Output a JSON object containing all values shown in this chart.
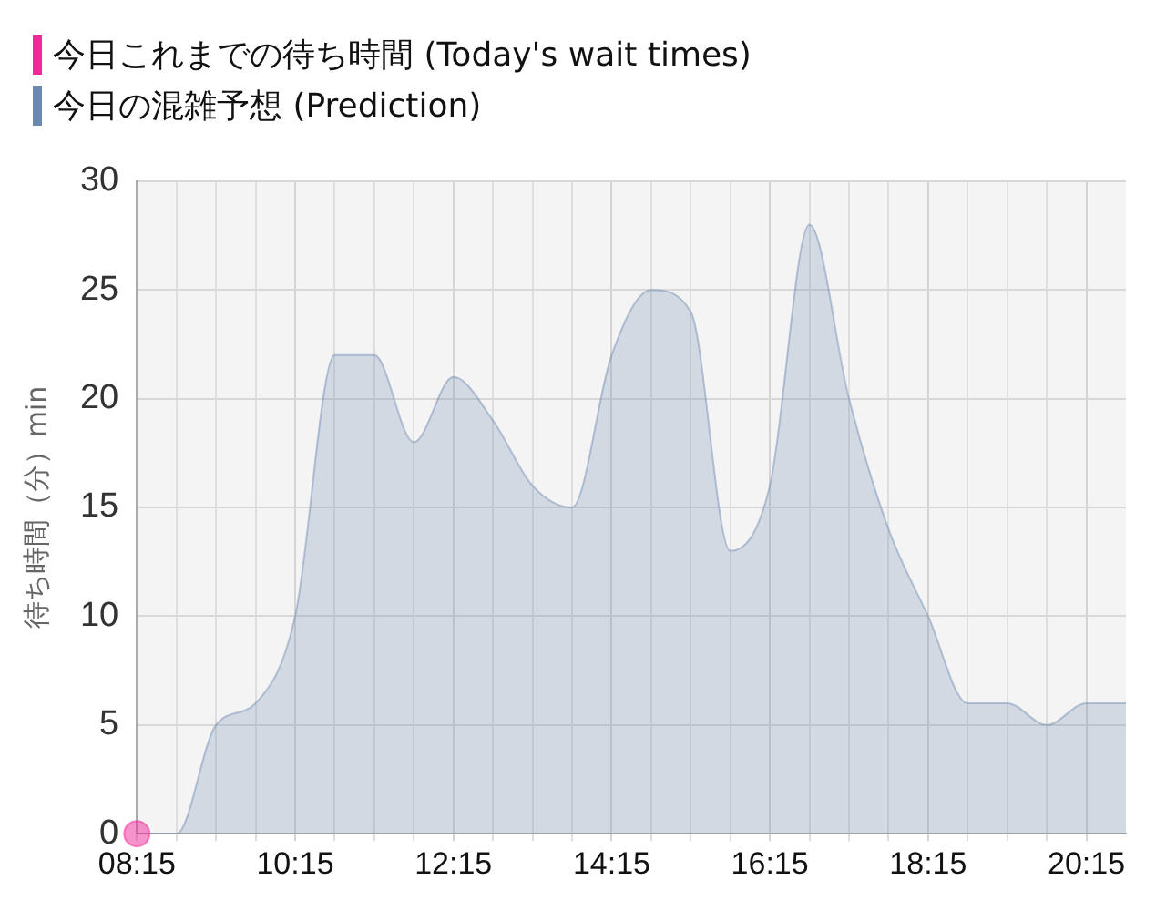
{
  "chart_data": {
    "type": "area",
    "ylabel": "待ち時間（分）min",
    "x": [
      8.25,
      8.75,
      9.25,
      9.75,
      10.25,
      10.75,
      11.25,
      11.75,
      12.25,
      12.75,
      13.25,
      13.75,
      14.25,
      14.75,
      15.25,
      15.75,
      16.25,
      16.75,
      17.25,
      17.75,
      18.25,
      18.75,
      19.25,
      19.75,
      20.25,
      20.75
    ],
    "series": [
      {
        "name": "今日これまでの待ち時間 (Today's wait times)",
        "type": "scatter",
        "marker": "circle",
        "color": "#f0289a",
        "x": [
          8.25
        ],
        "values": [
          0
        ]
      },
      {
        "name": "今日の混雑予想 (Prediction)",
        "marker": "none",
        "color": "#6a88b0",
        "values": [
          0,
          0,
          5,
          6,
          10,
          22,
          22,
          18,
          21,
          19,
          16,
          15,
          22,
          25,
          24,
          13,
          16,
          28,
          20,
          14,
          10,
          6,
          6,
          5,
          6,
          6
        ]
      }
    ],
    "xlim": [
      8.25,
      20.75
    ],
    "xticks": [
      {
        "value": 8.25,
        "label": "08:15"
      },
      {
        "value": 8.75,
        "label": null
      },
      {
        "value": 9.25,
        "label": null
      },
      {
        "value": 9.75,
        "label": null
      },
      {
        "value": 10.25,
        "label": "10:15"
      },
      {
        "value": 10.75,
        "label": null
      },
      {
        "value": 11.25,
        "label": null
      },
      {
        "value": 11.75,
        "label": null
      },
      {
        "value": 12.25,
        "label": "12:15"
      },
      {
        "value": 12.75,
        "label": null
      },
      {
        "value": 13.25,
        "label": null
      },
      {
        "value": 13.75,
        "label": null
      },
      {
        "value": 14.25,
        "label": "14:15"
      },
      {
        "value": 14.75,
        "label": null
      },
      {
        "value": 15.25,
        "label": null
      },
      {
        "value": 15.75,
        "label": null
      },
      {
        "value": 16.25,
        "label": "16:15"
      },
      {
        "value": 16.75,
        "label": null
      },
      {
        "value": 17.25,
        "label": null
      },
      {
        "value": 17.75,
        "label": null
      },
      {
        "value": 18.25,
        "label": "18:15"
      },
      {
        "value": 18.75,
        "label": null
      },
      {
        "value": 19.25,
        "label": null
      },
      {
        "value": 19.75,
        "label": null
      },
      {
        "value": 20.25,
        "label": "20:15"
      }
    ],
    "ylim": [
      0,
      30
    ],
    "yticks": [
      0,
      5,
      10,
      15,
      20,
      25,
      30
    ],
    "grid": true,
    "legend": "top left"
  }
}
